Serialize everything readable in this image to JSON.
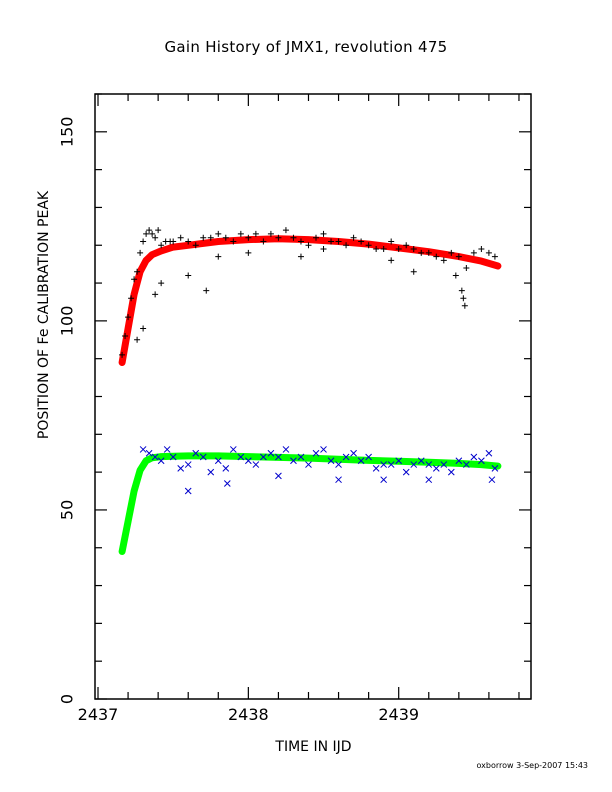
{
  "chart_data": {
    "type": "scatter",
    "title": "Gain History of JMX1, revolution 475",
    "xlabel": "TIME IN IJD",
    "ylabel": "POSITION OF Fe CALIBRATION PEAK",
    "xlim": [
      2436.98,
      2439.88
    ],
    "ylim": [
      0,
      160
    ],
    "xticks": [
      2437,
      2438,
      2439
    ],
    "yticks": [
      0,
      50,
      100,
      150
    ],
    "grid": false,
    "series": [
      {
        "kind": "points",
        "marker": "+",
        "color": "#000000",
        "x": [
          2437.16,
          2437.18,
          2437.2,
          2437.22,
          2437.24,
          2437.26,
          2437.28,
          2437.3,
          2437.32,
          2437.34,
          2437.36,
          2437.38,
          2437.4,
          2437.42,
          2437.45,
          2437.48,
          2437.5,
          2437.55,
          2437.6,
          2437.65,
          2437.7,
          2437.75,
          2437.8,
          2437.85,
          2437.9,
          2437.95,
          2438.0,
          2438.05,
          2438.1,
          2438.15,
          2438.2,
          2438.25,
          2438.3,
          2438.35,
          2438.4,
          2438.45,
          2438.5,
          2438.55,
          2438.6,
          2438.65,
          2438.7,
          2438.75,
          2438.8,
          2438.85,
          2438.9,
          2438.95,
          2439.0,
          2439.05,
          2439.1,
          2439.15,
          2439.2,
          2439.25,
          2439.3,
          2439.35,
          2439.4,
          2439.45,
          2439.5,
          2439.55,
          2439.6,
          2439.64,
          2437.26,
          2437.3,
          2437.38,
          2437.42,
          2437.6,
          2437.72,
          2437.8,
          2438.0,
          2438.35,
          2438.5,
          2438.95,
          2439.1,
          2439.38,
          2439.42,
          2439.43,
          2439.44
        ],
        "y": [
          91,
          96,
          101,
          106,
          111,
          113,
          118,
          121,
          123,
          124,
          123,
          122,
          124,
          120,
          121,
          121,
          121,
          122,
          121,
          120,
          122,
          122,
          123,
          122,
          121,
          123,
          122,
          123,
          121,
          123,
          122,
          124,
          122,
          121,
          120,
          122,
          123,
          121,
          121,
          120,
          122,
          121,
          120,
          119,
          119,
          121,
          119,
          120,
          119,
          118,
          118,
          117,
          116,
          118,
          117,
          114,
          118,
          119,
          118,
          117,
          95,
          98,
          107,
          110,
          112,
          108,
          117,
          118,
          117,
          119,
          116,
          113,
          112,
          108,
          106,
          104
        ]
      },
      {
        "kind": "fit",
        "color": "#ff0000",
        "x": [
          2437.16,
          2437.2,
          2437.24,
          2437.28,
          2437.32,
          2437.36,
          2437.42,
          2437.5,
          2437.6,
          2437.7,
          2437.8,
          2438.0,
          2438.2,
          2438.4,
          2438.6,
          2438.8,
          2439.0,
          2439.2,
          2439.4,
          2439.55,
          2439.66
        ],
        "y": [
          89,
          98,
          107,
          113,
          116,
          117.5,
          118.5,
          119.5,
          120,
          120.5,
          121,
          121.5,
          121.7,
          121.5,
          121,
          120.3,
          119.3,
          118.3,
          117,
          115.8,
          114.5
        ]
      },
      {
        "kind": "points",
        "marker": "x",
        "color": "#0000cc",
        "x": [
          2437.3,
          2437.34,
          2437.38,
          2437.42,
          2437.46,
          2437.5,
          2437.55,
          2437.6,
          2437.65,
          2437.7,
          2437.75,
          2437.8,
          2437.85,
          2437.9,
          2437.95,
          2438.0,
          2438.05,
          2438.1,
          2438.15,
          2438.2,
          2438.25,
          2438.3,
          2438.35,
          2438.4,
          2438.45,
          2438.5,
          2438.55,
          2438.6,
          2438.65,
          2438.7,
          2438.75,
          2438.8,
          2438.85,
          2438.9,
          2438.95,
          2439.0,
          2439.05,
          2439.1,
          2439.15,
          2439.2,
          2439.25,
          2439.3,
          2439.35,
          2439.4,
          2439.45,
          2439.5,
          2439.55,
          2439.6,
          2439.64,
          2437.6,
          2437.86,
          2438.2,
          2438.6,
          2438.9,
          2439.2,
          2439.62
        ],
        "y": [
          66,
          65,
          64,
          63,
          66,
          64,
          61,
          62,
          65,
          64,
          60,
          63,
          61,
          66,
          64,
          63,
          62,
          64,
          65,
          64,
          66,
          63,
          64,
          62,
          65,
          66,
          63,
          62,
          64,
          65,
          63,
          64,
          61,
          62,
          62,
          63,
          60,
          62,
          63,
          62,
          61,
          62,
          60,
          63,
          62,
          64,
          63,
          65,
          61,
          55,
          57,
          59,
          58,
          58,
          58,
          58
        ]
      },
      {
        "kind": "fit",
        "color": "#00ff00",
        "x": [
          2437.16,
          2437.2,
          2437.24,
          2437.28,
          2437.32,
          2437.36,
          2437.42,
          2437.5,
          2437.6,
          2437.8,
          2438.0,
          2438.2,
          2438.4,
          2438.6,
          2438.8,
          2439.0,
          2439.2,
          2439.4,
          2439.55,
          2439.66
        ],
        "y": [
          39,
          47,
          55,
          60.5,
          63,
          63.8,
          64.1,
          64.2,
          64.3,
          64.3,
          64.1,
          63.9,
          63.7,
          63.4,
          63.1,
          62.9,
          62.6,
          62.3,
          62,
          61.6
        ]
      }
    ]
  },
  "footer": {
    "signature": "oxborrow   3-Sep-2007 15:43"
  }
}
